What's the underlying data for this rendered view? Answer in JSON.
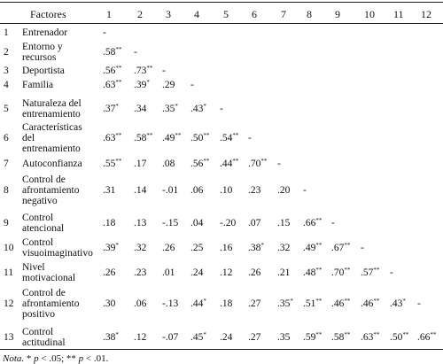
{
  "table": {
    "header": {
      "factors_label": "Factores",
      "columns": [
        "1",
        "2",
        "3",
        "4",
        "5",
        "6",
        "7",
        "8",
        "9",
        "10",
        "11",
        "12"
      ]
    },
    "rows": [
      {
        "num": "1",
        "lines": [
          "Entrenador"
        ],
        "cells": [
          "-"
        ]
      },
      {
        "num": "2",
        "lines": [
          "Entorno y",
          "recursos"
        ],
        "cells": [
          ".58**",
          "-"
        ]
      },
      {
        "num": "3",
        "lines": [
          "Deportista"
        ],
        "cells": [
          ".56**",
          ".73**",
          "-"
        ]
      },
      {
        "num": "4",
        "lines": [
          "Familia"
        ],
        "cells": [
          ".63**",
          ".39*",
          ".29",
          "-"
        ]
      },
      {
        "num": "5",
        "lines": [
          "Naturaleza del",
          "entrenamiento"
        ],
        "cells": [
          ".37*",
          ".34",
          ".35*",
          ".43*",
          "-"
        ]
      },
      {
        "num": "6",
        "lines": [
          "Características",
          "del",
          "entrenamiento"
        ],
        "cells": [
          ".63**",
          ".58**",
          ".49**",
          ".50**",
          ".54**",
          "-"
        ]
      },
      {
        "num": "7",
        "lines": [
          "Autoconfianza"
        ],
        "cells": [
          ".55**",
          ".17",
          ".08",
          ".56**",
          ".44**",
          ".70**",
          "-"
        ]
      },
      {
        "num": "8",
        "lines": [
          "Control de",
          "afrontamiento",
          "negativo"
        ],
        "cells": [
          ".31",
          ".14",
          "-.01",
          ".06",
          ".10",
          ".23",
          ".20",
          "-"
        ]
      },
      {
        "num": "9",
        "lines": [
          "Control",
          "atencional"
        ],
        "cells": [
          ".18",
          ".13",
          "-.15",
          ".04",
          "-.20",
          ".07",
          ".15",
          ".66**",
          "-"
        ]
      },
      {
        "num": "10",
        "lines": [
          "Control",
          "visuoimaginativo"
        ],
        "cells": [
          ".39*",
          ".32",
          ".26",
          ".25",
          ".16",
          ".38*",
          ".32",
          ".49**",
          ".67**",
          "-"
        ]
      },
      {
        "num": "11",
        "lines": [
          "Nivel",
          "motivacional"
        ],
        "cells": [
          ".26",
          ".23",
          ".01",
          ".24",
          ".12",
          ".26",
          ".21",
          ".48**",
          ".70**",
          ".57**",
          "-"
        ]
      },
      {
        "num": "12",
        "lines": [
          "Control de",
          "afrontamiento",
          "positivo"
        ],
        "cells": [
          ".30",
          ".06",
          "-.13",
          ".44*",
          ".18",
          ".27",
          ".35*",
          ".51**",
          ".46**",
          ".46**",
          ".43*",
          "-"
        ]
      },
      {
        "num": "13",
        "lines": [
          "Control",
          "actitudinal"
        ],
        "cells": [
          ".38*",
          ".12",
          "-.07",
          ".45*",
          ".24",
          ".27",
          ".35",
          ".59**",
          ".58**",
          ".63**",
          ".50**",
          ".66**"
        ]
      }
    ]
  },
  "note": {
    "label": "Nota.",
    "text_a": " * ",
    "p1": "p",
    "text_b": " < .05; ** ",
    "p2": "p",
    "text_c": " < .01."
  }
}
